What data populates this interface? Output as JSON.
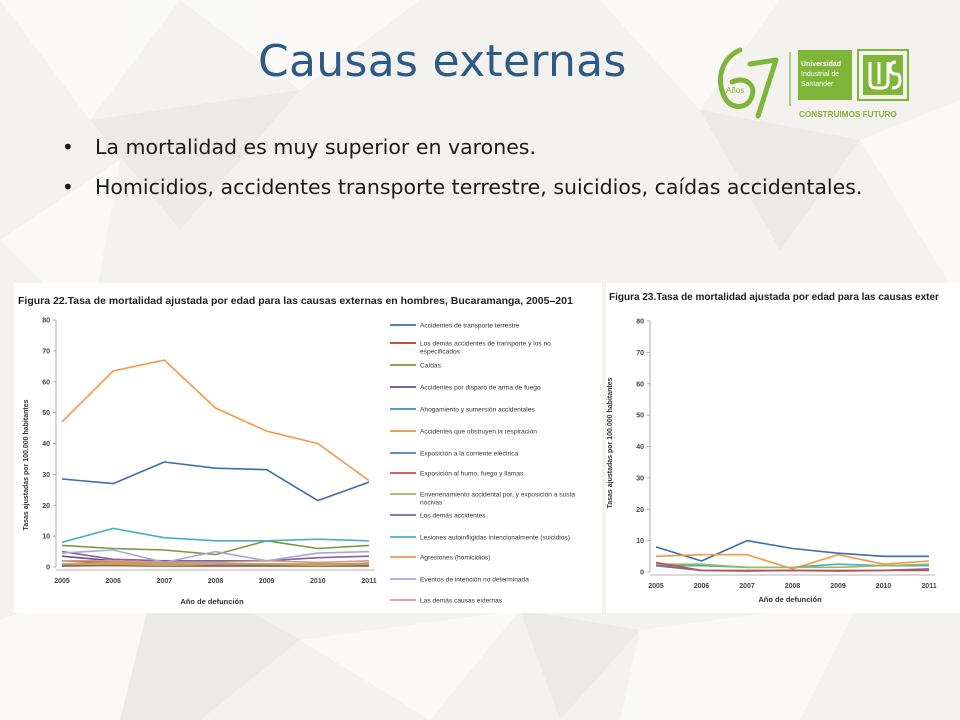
{
  "slide": {
    "title": "Causas externas",
    "bullets": [
      "La mortalidad es muy superior en varones.",
      "Homicidios, accidentes transporte terrestre, suicidios, caídas accidentales."
    ]
  },
  "logo": {
    "anniversary_number": "67",
    "anniversary_word": "Años",
    "university_line1": "Universidad",
    "university_line2": "Industrial de",
    "university_line3": "Santander",
    "tagline": "CONSTRUIMOS FUTURO",
    "icon": "uis-logo-icon",
    "green": "#7fb539"
  },
  "chart_data": [
    {
      "type": "line",
      "title": "Figura 22.Tasa de mortalidad ajustada por edad para las causas externas en hombres, Bucaramanga, 2005–201",
      "xlabel": "Año de defunción",
      "ylabel": "Tasas ajustadas por 100.000 habitantes",
      "ylim": [
        0,
        80
      ],
      "yticks": [
        0,
        10,
        20,
        30,
        40,
        50,
        60,
        70,
        80
      ],
      "x": [
        "2005",
        "2006",
        "2007",
        "2008",
        "2009",
        "2010",
        "2011"
      ],
      "legend_position": "right",
      "series": [
        {
          "name": "Accidentes de transporte terrestre",
          "color": "#3c6ea8",
          "values": [
            28.5,
            27,
            34,
            32,
            31.5,
            21.5,
            27.5
          ]
        },
        {
          "name": "Los demás accidentes de transporte y los no especificados",
          "color": "#b23b2e",
          "values": [
            2,
            1.5,
            1,
            0.8,
            1,
            0.8,
            1.2
          ]
        },
        {
          "name": "Caídas",
          "color": "#7a9a3a",
          "values": [
            7,
            6,
            5.5,
            4,
            8.5,
            6,
            7
          ]
        },
        {
          "name": "Accidentes por disparo de arma de fuego",
          "color": "#6a4c93",
          "values": [
            3.5,
            2,
            1,
            1,
            0.5,
            1,
            1
          ]
        },
        {
          "name": "Ahogamiento y sumersión accidentales",
          "color": "#3a95ab",
          "values": [
            1,
            1,
            0.5,
            1,
            1,
            0.5,
            1
          ]
        },
        {
          "name": "Accidentes que obstruyen la respiración",
          "color": "#e8923a",
          "values": [
            1,
            1.5,
            1,
            1,
            1,
            1,
            1
          ]
        },
        {
          "name": "Exposición a la corriente eléctrica",
          "color": "#4a7fc0",
          "values": [
            0.5,
            0.5,
            0.3,
            0.5,
            0.5,
            0.3,
            0.5
          ]
        },
        {
          "name": "Exposición al humo, fuego y llamas",
          "color": "#c0504d",
          "values": [
            0.3,
            0.5,
            0.3,
            0.3,
            0.3,
            0.3,
            0.3
          ]
        },
        {
          "name": "Envenenamiento accidental por, y exposición a susta nocivas",
          "color": "#9bbb59",
          "values": [
            1,
            1,
            0.5,
            1,
            1,
            0.5,
            1
          ]
        },
        {
          "name": "Los demás accidentes",
          "color": "#8064a2",
          "values": [
            5,
            2.5,
            2,
            2,
            2,
            3,
            3.5
          ]
        },
        {
          "name": "Lesiones autoinfligidas intencionalmente (suicidios)",
          "color": "#4bacc6",
          "values": [
            8,
            12.5,
            9.5,
            8.5,
            8.5,
            9,
            8.5
          ]
        },
        {
          "name": "Agresiones (homicidios)",
          "color": "#f79646",
          "values": [
            47,
            63.5,
            67,
            51.5,
            44,
            40,
            28
          ]
        },
        {
          "name": "Eventos de intención no determinada",
          "color": "#a6a6d8",
          "values": [
            4.5,
            5.5,
            1.5,
            5,
            2,
            4.5,
            5
          ]
        },
        {
          "name": "Las demás causas externas",
          "color": "#d99694",
          "values": [
            2,
            2,
            1.5,
            1.5,
            2,
            1.5,
            2
          ]
        }
      ]
    },
    {
      "type": "line",
      "title": "Figura 23.Tasa de mortalidad ajustada por edad para las causas exter",
      "xlabel": "Año de defunción",
      "ylabel": "Tasas ajustadas por 100.000 habitantes",
      "ylim": [
        0,
        80
      ],
      "yticks": [
        0,
        10,
        20,
        30,
        40,
        50,
        60,
        70,
        80
      ],
      "x": [
        "2005",
        "2006",
        "2007",
        "2008",
        "2009",
        "2010",
        "2011"
      ],
      "series": [
        {
          "color": "#3c6ea8",
          "values": [
            8,
            3.5,
            10,
            7.5,
            6,
            5,
            5
          ]
        },
        {
          "color": "#f79646",
          "values": [
            5,
            5.5,
            5.5,
            1,
            5.5,
            2.5,
            3.5
          ]
        },
        {
          "color": "#4bacc6",
          "values": [
            2,
            2,
            1.5,
            1.5,
            2.5,
            2,
            2
          ]
        },
        {
          "color": "#9bbb59",
          "values": [
            2.5,
            2.5,
            1.5,
            1.5,
            1.5,
            2,
            2.5
          ]
        },
        {
          "color": "#8064a2",
          "values": [
            2,
            0.5,
            0.5,
            0.5,
            0.5,
            0.5,
            1
          ]
        },
        {
          "color": "#c0504d",
          "values": [
            3,
            0.5,
            0.3,
            0.5,
            0.3,
            0.5,
            0.5
          ]
        }
      ]
    }
  ]
}
